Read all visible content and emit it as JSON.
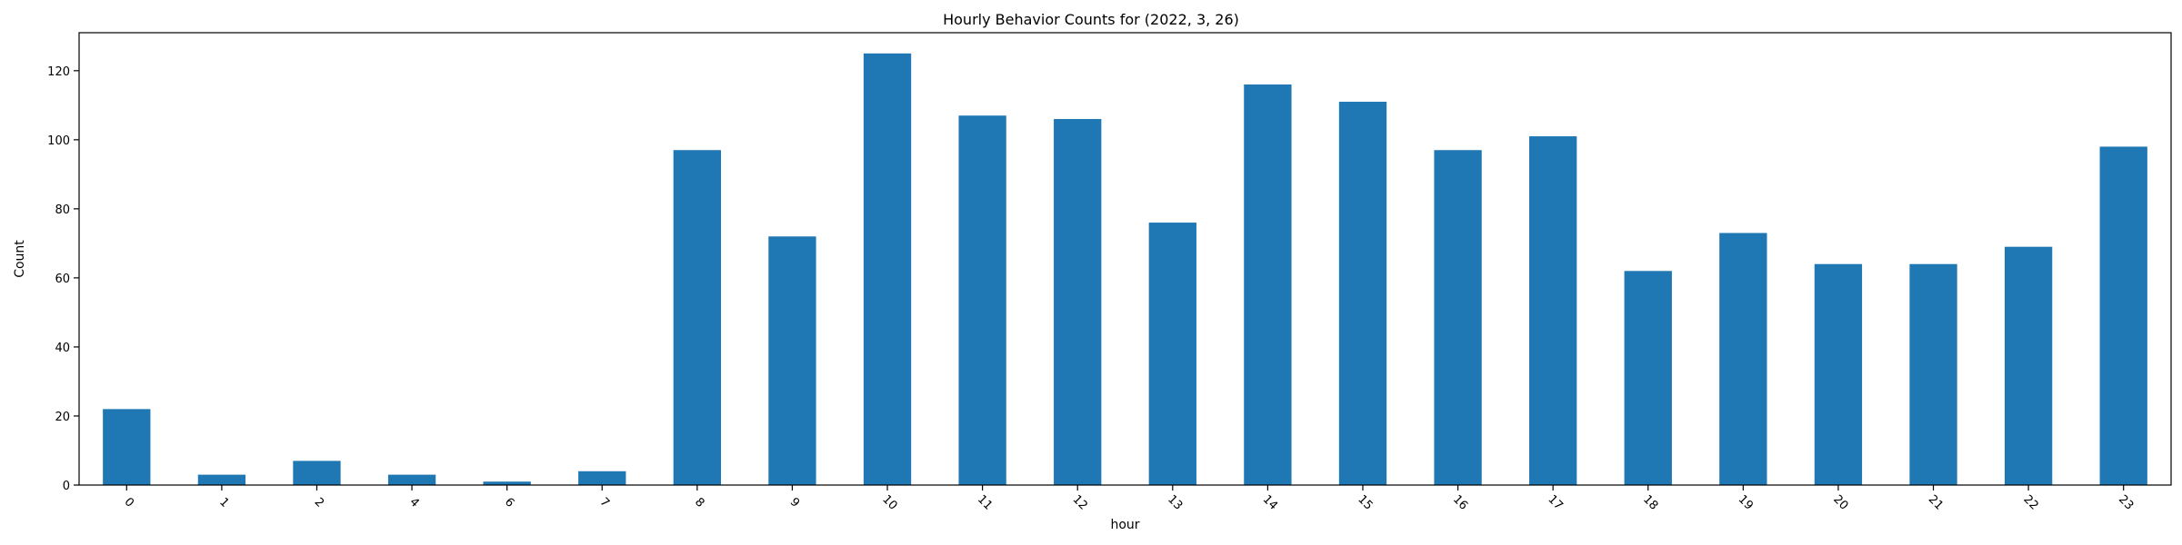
{
  "chart_data": {
    "type": "bar",
    "title": "Hourly Behavior Counts for (2022, 3, 26)",
    "xlabel": "hour",
    "ylabel": "Count",
    "categories": [
      "0",
      "1",
      "2",
      "4",
      "6",
      "7",
      "8",
      "9",
      "10",
      "11",
      "12",
      "13",
      "14",
      "15",
      "16",
      "17",
      "18",
      "19",
      "20",
      "21",
      "22",
      "23"
    ],
    "values": [
      22,
      3,
      7,
      3,
      1,
      4,
      97,
      72,
      125,
      107,
      106,
      76,
      116,
      111,
      97,
      101,
      62,
      73,
      64,
      64,
      69,
      98
    ],
    "ylim": [
      0,
      131
    ],
    "yticks": [
      0,
      20,
      40,
      60,
      80,
      100,
      120
    ],
    "bar_color": "#1f77b4",
    "grid": false,
    "legend": "none",
    "xtick_rotation_deg": 45
  }
}
